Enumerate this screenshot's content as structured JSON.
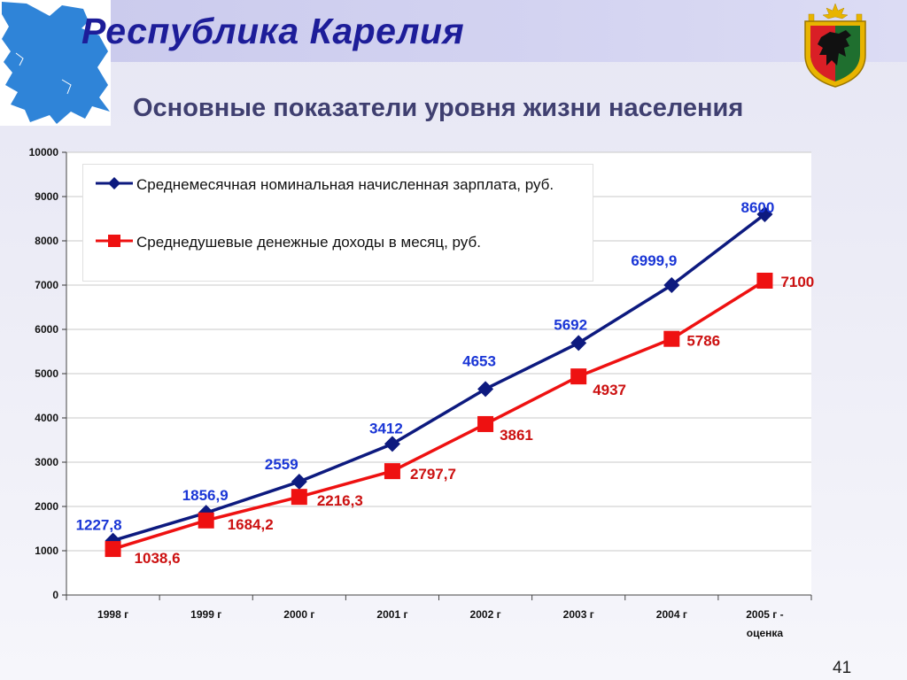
{
  "header": {
    "title": "Республика Карелия",
    "subtitle": "Основные показатели уровня жизни населения",
    "page_number": "41"
  },
  "colors": {
    "title": "#1d1d99",
    "series_wage": "#0d1a7f",
    "series_income": "#ee1111",
    "map": "#2f84d8"
  },
  "icons": {
    "map": "karelia-map-icon",
    "emblem": "karelia-coat-of-arms-icon"
  },
  "chart_data": {
    "type": "line",
    "title": "Основные показатели уровня жизни населения",
    "xlabel": "",
    "ylabel": "",
    "categories": [
      "1998 г",
      "1999 г",
      "2000 г",
      "2001 г",
      "2002 г",
      "2003 г",
      "2004 г",
      "2005 г - оценка"
    ],
    "ylim": [
      0,
      10000
    ],
    "yticks": [
      0,
      1000,
      2000,
      3000,
      4000,
      5000,
      6000,
      7000,
      8000,
      9000,
      10000
    ],
    "grid": true,
    "legend_position": "top-left",
    "series": [
      {
        "name": "Среднемесячная номинальная начисленная зарплата, руб.",
        "marker": "diamond",
        "color": "#0d1a7f",
        "label_color": "#1a36d6",
        "values": [
          1227.8,
          1856.9,
          2559,
          3412,
          4653,
          5692,
          6999.9,
          8600
        ],
        "labels": [
          "1227,8",
          "1856,9",
          "2559",
          "3412",
          "4653",
          "5692",
          "6999,9",
          "8600"
        ]
      },
      {
        "name": "Среднедушевые денежные доходы в месяц, руб.",
        "marker": "square",
        "color": "#ee1111",
        "label_color": "#cc1111",
        "values": [
          1038.6,
          1684.2,
          2216.3,
          2797.7,
          3861,
          4937,
          5786,
          7100
        ],
        "labels": [
          "1038,6",
          "1684,2",
          "2216,3",
          "2797,7",
          "3861",
          "4937",
          "5786",
          "7100"
        ]
      }
    ]
  }
}
